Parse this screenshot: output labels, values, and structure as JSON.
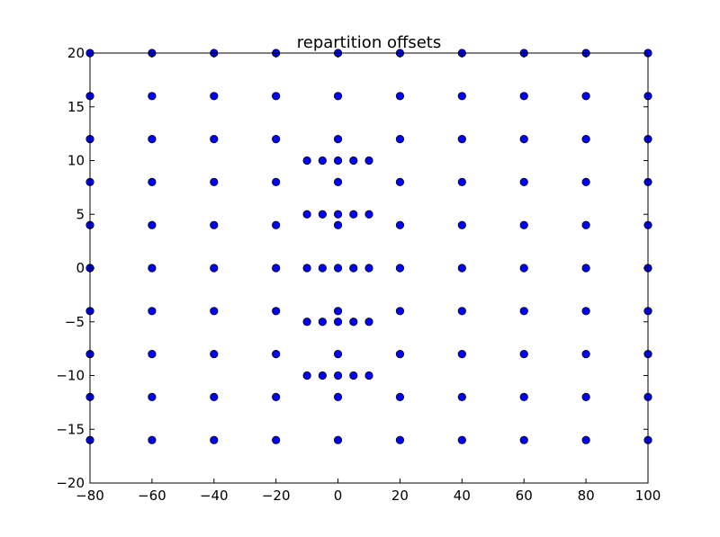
{
  "chart_data": {
    "type": "scatter",
    "title": "repartition offsets",
    "xlabel": "",
    "ylabel": "",
    "xlim": [
      -80,
      100
    ],
    "ylim": [
      -20,
      20
    ],
    "xticks": [
      -80,
      -60,
      -40,
      -20,
      0,
      20,
      40,
      60,
      80,
      100
    ],
    "yticks": [
      -20,
      -15,
      -10,
      -5,
      0,
      5,
      10,
      15,
      20
    ],
    "xtick_labels": [
      "−80",
      "−60",
      "−40",
      "−20",
      "0",
      "20",
      "40",
      "60",
      "80",
      "100"
    ],
    "ytick_labels": [
      "−20",
      "−15",
      "−10",
      "−5",
      "0",
      "5",
      "10",
      "15",
      "20"
    ],
    "grid": false,
    "marker_color": "#0000ff",
    "series": [
      {
        "grid_x": [
          -80,
          -60,
          -40,
          -20,
          0,
          20,
          40,
          60,
          80,
          100
        ],
        "grid_y": [
          -16,
          -12,
          -8,
          -4,
          0,
          4,
          8,
          12,
          16,
          20
        ],
        "inner_x": [
          -10,
          -5,
          0,
          5,
          10
        ],
        "inner_y": [
          -10,
          -5,
          0,
          5,
          10
        ]
      }
    ]
  }
}
